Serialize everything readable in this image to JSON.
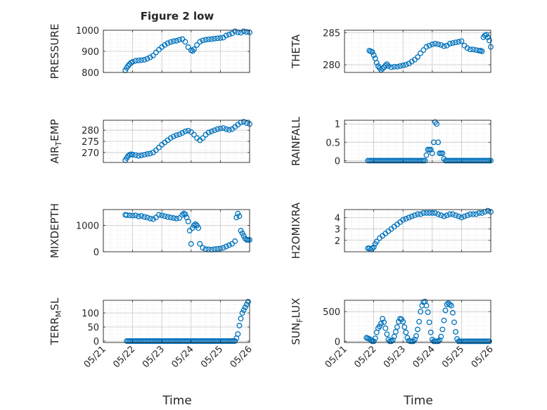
{
  "figure": {
    "title": "Figure 2 low",
    "marker_color": "#0072BD",
    "x_ticks": [
      "05/21",
      "05/22",
      "05/23",
      "05/24",
      "05/25",
      "05/26"
    ],
    "xlabel": "Time"
  },
  "chart_data": [
    {
      "type": "scatter",
      "ylabel": "PRESSURE",
      "xlim": [
        0,
        5
      ],
      "ylim": [
        800,
        1000
      ],
      "yticks": [
        "800",
        "900",
        "1000"
      ],
      "grid": true,
      "x": [
        0.75,
        0.8,
        0.85,
        0.9,
        0.95,
        1.0,
        1.1,
        1.2,
        1.3,
        1.4,
        1.5,
        1.6,
        1.7,
        1.8,
        1.9,
        2.0,
        2.1,
        2.2,
        2.3,
        2.4,
        2.5,
        2.6,
        2.7,
        2.8,
        2.9,
        3.0,
        3.05,
        3.1,
        3.2,
        3.3,
        3.4,
        3.5,
        3.6,
        3.7,
        3.8,
        3.9,
        4.0,
        4.1,
        4.2,
        4.3,
        4.4,
        4.5,
        4.6,
        4.7,
        4.8,
        4.9,
        5.0
      ],
      "y": [
        810,
        822,
        832,
        840,
        846,
        850,
        855,
        857,
        858,
        860,
        865,
        872,
        880,
        895,
        908,
        920,
        930,
        938,
        944,
        948,
        950,
        955,
        958,
        945,
        920,
        905,
        902,
        910,
        930,
        945,
        952,
        955,
        957,
        958,
        960,
        962,
        963,
        965,
        975,
        980,
        985,
        995,
        990,
        988,
        995,
        992,
        990
      ]
    },
    {
      "type": "scatter",
      "ylabel": "THETA",
      "xlim": [
        0,
        5
      ],
      "ylim": [
        278.8,
        285.4
      ],
      "yticks": [
        "280",
        "285"
      ],
      "grid": true,
      "x": [
        0.85,
        0.9,
        0.95,
        1.0,
        1.05,
        1.1,
        1.15,
        1.2,
        1.25,
        1.3,
        1.35,
        1.4,
        1.45,
        1.5,
        1.6,
        1.7,
        1.8,
        1.9,
        2.0,
        2.1,
        2.2,
        2.3,
        2.4,
        2.5,
        2.6,
        2.7,
        2.8,
        2.9,
        3.0,
        3.1,
        3.2,
        3.3,
        3.4,
        3.5,
        3.6,
        3.7,
        3.8,
        3.9,
        4.0,
        4.1,
        4.2,
        4.3,
        4.4,
        4.5,
        4.6,
        4.65,
        4.7,
        4.75,
        4.8,
        4.85,
        4.9,
        4.95,
        5.0
      ],
      "y": [
        282.2,
        282.1,
        282.0,
        281.5,
        281.0,
        280.3,
        279.8,
        279.5,
        279.2,
        279.4,
        279.6,
        279.9,
        280.1,
        279.8,
        279.6,
        279.7,
        279.7,
        279.8,
        279.9,
        280.0,
        280.2,
        280.5,
        280.8,
        281.2,
        281.8,
        282.3,
        282.8,
        283.0,
        283.2,
        283.3,
        283.2,
        283.1,
        282.9,
        283.0,
        283.3,
        283.4,
        283.5,
        283.6,
        283.7,
        283.0,
        282.6,
        282.4,
        282.4,
        282.3,
        282.2,
        282.2,
        282.1,
        284.3,
        284.6,
        284.7,
        284.3,
        283.8,
        282.8
      ]
    },
    {
      "type": "scatter",
      "ylabel_main": "AIR",
      "ylabel_sub": "T",
      "ylabel_rest": "EMP",
      "xlim": [
        0,
        5
      ],
      "ylim": [
        265.5,
        284.5
      ],
      "yticks": [
        "270",
        "275",
        "280"
      ],
      "grid": true,
      "x": [
        0.75,
        0.8,
        0.85,
        0.9,
        0.95,
        1.0,
        1.1,
        1.2,
        1.3,
        1.4,
        1.5,
        1.6,
        1.7,
        1.8,
        1.9,
        2.0,
        2.1,
        2.2,
        2.3,
        2.4,
        2.5,
        2.6,
        2.7,
        2.8,
        2.9,
        3.0,
        3.1,
        3.2,
        3.3,
        3.4,
        3.5,
        3.6,
        3.7,
        3.8,
        3.9,
        4.0,
        4.1,
        4.2,
        4.3,
        4.4,
        4.5,
        4.6,
        4.7,
        4.8,
        4.9,
        5.0
      ],
      "y": [
        266.5,
        267.5,
        268.5,
        269.0,
        269.2,
        269.0,
        268.8,
        268.5,
        268.7,
        269.0,
        269.3,
        269.5,
        270.0,
        271.0,
        272.2,
        273.5,
        274.5,
        275.5,
        276.5,
        277.2,
        277.8,
        278.2,
        278.8,
        279.5,
        279.8,
        279.2,
        278.0,
        276.5,
        275.5,
        276.5,
        278.0,
        279.0,
        279.5,
        280.0,
        280.5,
        280.8,
        281.0,
        280.5,
        280.2,
        280.5,
        281.5,
        282.5,
        283.5,
        283.8,
        283.2,
        282.8
      ]
    },
    {
      "type": "scatter",
      "ylabel": "RAINFALL",
      "xlim": [
        0,
        5
      ],
      "ylim": [
        -0.05,
        1.1
      ],
      "yticks": [
        "0",
        "0.5",
        "1"
      ],
      "grid": true,
      "x": [
        0.8,
        0.85,
        0.9,
        0.95,
        1.0,
        1.05,
        1.1,
        1.15,
        1.2,
        1.25,
        1.3,
        1.35,
        1.4,
        1.45,
        1.5,
        1.55,
        1.6,
        1.65,
        1.7,
        1.75,
        1.8,
        1.85,
        1.9,
        1.95,
        2.0,
        2.05,
        2.1,
        2.15,
        2.2,
        2.25,
        2.3,
        2.35,
        2.4,
        2.45,
        2.5,
        2.55,
        2.6,
        2.65,
        2.7,
        2.75,
        2.8,
        2.85,
        2.9,
        2.95,
        3.0,
        3.05,
        3.1,
        3.15,
        3.2,
        3.25,
        3.3,
        3.35,
        3.4,
        3.45,
        3.5,
        3.55,
        3.6,
        3.65,
        3.7,
        3.75,
        3.8,
        3.85,
        3.9,
        3.95,
        4.0,
        4.05,
        4.1,
        4.15,
        4.2,
        4.25,
        4.3,
        4.35,
        4.4,
        4.45,
        4.5,
        4.55,
        4.6,
        4.65,
        4.7,
        4.75,
        4.8,
        4.85,
        4.9,
        4.95,
        5.0
      ],
      "y": [
        0,
        0,
        0,
        0,
        0,
        0,
        0,
        0,
        0,
        0,
        0,
        0,
        0,
        0,
        0,
        0,
        0,
        0,
        0,
        0,
        0,
        0,
        0,
        0,
        0,
        0,
        0,
        0,
        0,
        0,
        0,
        0,
        0,
        0,
        0,
        0,
        0,
        0,
        0,
        0,
        0.15,
        0.3,
        0.3,
        0.3,
        0.2,
        0.5,
        1.05,
        1.0,
        0.5,
        0.2,
        0.2,
        0.2,
        0.05,
        0,
        0,
        0,
        0,
        0,
        0,
        0,
        0,
        0,
        0,
        0,
        0,
        0,
        0,
        0,
        0,
        0,
        0,
        0,
        0,
        0,
        0,
        0,
        0,
        0,
        0,
        0,
        0,
        0,
        0,
        0,
        0
      ]
    },
    {
      "type": "scatter",
      "ylabel": "MIXDEPTH",
      "xlim": [
        0,
        5
      ],
      "ylim": [
        0,
        1600
      ],
      "yticks": [
        "0",
        "1000"
      ],
      "grid": true,
      "x": [
        0.75,
        0.8,
        0.9,
        1.0,
        1.1,
        1.2,
        1.3,
        1.4,
        1.5,
        1.6,
        1.7,
        1.8,
        1.9,
        2.0,
        2.1,
        2.2,
        2.3,
        2.4,
        2.5,
        2.6,
        2.7,
        2.75,
        2.8,
        2.85,
        2.9,
        2.95,
        3.0,
        3.05,
        3.1,
        3.15,
        3.2,
        3.25,
        3.3,
        3.4,
        3.5,
        3.6,
        3.7,
        3.8,
        3.9,
        4.0,
        4.1,
        4.2,
        4.3,
        4.4,
        4.5,
        4.55,
        4.6,
        4.65,
        4.7,
        4.75,
        4.8,
        4.85,
        4.9,
        4.95,
        5.0
      ],
      "y": [
        1400,
        1390,
        1380,
        1370,
        1380,
        1340,
        1360,
        1320,
        1300,
        1260,
        1240,
        1300,
        1400,
        1380,
        1350,
        1320,
        1300,
        1280,
        1260,
        1280,
        1400,
        1450,
        1420,
        1300,
        1150,
        800,
        300,
        900,
        1000,
        1050,
        1000,
        900,
        300,
        150,
        100,
        90,
        80,
        100,
        110,
        120,
        150,
        200,
        250,
        300,
        400,
        1300,
        1450,
        1350,
        800,
        700,
        600,
        500,
        450,
        450,
        450
      ]
    },
    {
      "type": "scatter",
      "ylabel": "H2OMIXRA",
      "xlim": [
        0,
        5
      ],
      "ylim": [
        1.0,
        4.7
      ],
      "yticks": [
        "2",
        "3",
        "4"
      ],
      "grid": true,
      "x": [
        0.8,
        0.85,
        0.9,
        0.95,
        1.0,
        1.05,
        1.1,
        1.2,
        1.3,
        1.4,
        1.5,
        1.6,
        1.7,
        1.8,
        1.9,
        2.0,
        2.1,
        2.2,
        2.3,
        2.4,
        2.5,
        2.6,
        2.7,
        2.8,
        2.9,
        3.0,
        3.1,
        3.2,
        3.3,
        3.4,
        3.5,
        3.6,
        3.7,
        3.8,
        3.9,
        4.0,
        4.1,
        4.2,
        4.3,
        4.4,
        4.5,
        4.6,
        4.7,
        4.8,
        4.9,
        5.0
      ],
      "y": [
        1.3,
        1.3,
        1.2,
        1.3,
        1.4,
        1.7,
        1.9,
        2.2,
        2.4,
        2.6,
        2.8,
        3.0,
        3.2,
        3.4,
        3.6,
        3.8,
        3.9,
        4.0,
        4.1,
        4.2,
        4.3,
        4.3,
        4.4,
        4.4,
        4.4,
        4.4,
        4.4,
        4.3,
        4.2,
        4.1,
        4.2,
        4.3,
        4.3,
        4.2,
        4.1,
        4.0,
        4.1,
        4.2,
        4.3,
        4.3,
        4.3,
        4.4,
        4.4,
        4.5,
        4.6,
        4.5
      ]
    },
    {
      "type": "scatter",
      "ylabel_main": "TERR",
      "ylabel_sub": "M",
      "ylabel_rest": "SL",
      "xlim": [
        0,
        5
      ],
      "ylim": [
        -5,
        145
      ],
      "yticks": [
        "0",
        "50",
        "100"
      ],
      "grid": true,
      "x": [
        0.8,
        0.85,
        0.9,
        0.95,
        1.0,
        1.05,
        1.1,
        1.15,
        1.2,
        1.25,
        1.3,
        1.35,
        1.4,
        1.45,
        1.5,
        1.55,
        1.6,
        1.65,
        1.7,
        1.75,
        1.8,
        1.85,
        1.9,
        1.95,
        2.0,
        2.05,
        2.1,
        2.15,
        2.2,
        2.25,
        2.3,
        2.35,
        2.4,
        2.45,
        2.5,
        2.55,
        2.6,
        2.65,
        2.7,
        2.75,
        2.8,
        2.85,
        2.9,
        2.95,
        3.0,
        3.05,
        3.1,
        3.15,
        3.2,
        3.25,
        3.3,
        3.35,
        3.4,
        3.45,
        3.5,
        3.55,
        3.6,
        3.65,
        3.7,
        3.75,
        3.8,
        3.85,
        3.9,
        3.95,
        4.0,
        4.05,
        4.1,
        4.15,
        4.2,
        4.25,
        4.3,
        4.35,
        4.4,
        4.45,
        4.5,
        4.55,
        4.6,
        4.65,
        4.7,
        4.75,
        4.8,
        4.85,
        4.9,
        4.95
      ],
      "y": [
        0,
        0,
        0,
        0,
        0,
        0,
        0,
        0,
        0,
        0,
        0,
        0,
        0,
        0,
        0,
        0,
        0,
        0,
        0,
        0,
        0,
        0,
        0,
        0,
        0,
        0,
        0,
        0,
        0,
        0,
        0,
        0,
        0,
        0,
        0,
        0,
        0,
        0,
        0,
        0,
        0,
        0,
        0,
        0,
        0,
        0,
        0,
        0,
        0,
        0,
        0,
        0,
        0,
        0,
        0,
        0,
        0,
        0,
        0,
        0,
        0,
        0,
        0,
        0,
        0,
        0,
        0,
        0,
        0,
        0,
        0,
        0,
        0,
        0,
        0,
        10,
        25,
        55,
        80,
        100,
        110,
        120,
        130,
        140
      ]
    },
    {
      "type": "scatter",
      "ylabel_main": "SUN",
      "ylabel_sub": "F",
      "ylabel_rest": "LUX",
      "xlim": [
        0,
        5
      ],
      "ylim": [
        -20,
        690
      ],
      "yticks": [
        "0",
        "500"
      ],
      "grid": true,
      "x": [
        0.75,
        0.8,
        0.85,
        0.9,
        0.95,
        1.0,
        1.05,
        1.1,
        1.15,
        1.2,
        1.25,
        1.3,
        1.35,
        1.4,
        1.45,
        1.5,
        1.55,
        1.6,
        1.65,
        1.7,
        1.75,
        1.8,
        1.85,
        1.9,
        1.95,
        2.0,
        2.05,
        2.1,
        2.15,
        2.2,
        2.25,
        2.3,
        2.35,
        2.4,
        2.45,
        2.5,
        2.55,
        2.6,
        2.65,
        2.7,
        2.75,
        2.8,
        2.85,
        2.9,
        2.95,
        3.0,
        3.05,
        3.1,
        3.15,
        3.2,
        3.25,
        3.3,
        3.35,
        3.4,
        3.45,
        3.5,
        3.55,
        3.6,
        3.65,
        3.7,
        3.75,
        3.8,
        3.85,
        3.9,
        3.95,
        4.0,
        4.05,
        4.1,
        4.15,
        4.2,
        4.25,
        4.3,
        4.35,
        4.4,
        4.45,
        4.5,
        4.55,
        4.6,
        4.65,
        4.7,
        4.75,
        4.8,
        4.85,
        4.9,
        4.95
      ],
      "y": [
        60,
        50,
        40,
        20,
        0,
        0,
        50,
        150,
        220,
        250,
        300,
        380,
        320,
        220,
        120,
        30,
        0,
        0,
        20,
        80,
        160,
        240,
        330,
        380,
        370,
        330,
        240,
        150,
        60,
        10,
        0,
        0,
        0,
        30,
        90,
        200,
        330,
        500,
        600,
        660,
        670,
        600,
        490,
        320,
        150,
        30,
        0,
        0,
        0,
        0,
        20,
        80,
        200,
        350,
        520,
        620,
        640,
        620,
        600,
        480,
        320,
        160,
        40,
        0,
        0,
        0,
        0,
        0,
        0,
        0,
        0,
        0,
        0,
        0,
        0,
        0,
        0,
        0,
        0,
        0,
        0,
        0,
        0,
        0,
        0
      ]
    }
  ]
}
